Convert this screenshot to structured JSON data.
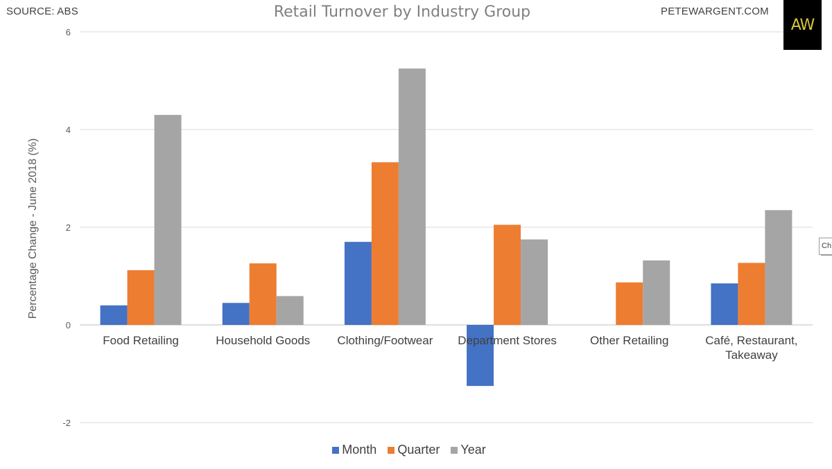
{
  "header": {
    "source": "SOURCE: ABS",
    "website": "PETEWARGENT.COM",
    "logo_text": "AW"
  },
  "edge_fragment": "Ch",
  "colors": {
    "month": "#4472c4",
    "quarter": "#ed7d31",
    "year": "#a5a5a5",
    "grid": "#d9d9d9",
    "logo_bg": "#000000",
    "logo_text": "#d8c638"
  },
  "chart_data": {
    "type": "bar",
    "title": "Retail Turnover by Industry Group",
    "xlabel": "",
    "ylabel": "Percentage Change - June 2018 (%)",
    "ylim": [
      -2,
      6
    ],
    "yticks": [
      -2,
      0,
      2,
      4,
      6
    ],
    "grid": true,
    "legend_position": "bottom",
    "categories": [
      [
        "Food Retailing"
      ],
      [
        "Household Goods"
      ],
      [
        "Clothing/Footwear"
      ],
      [
        "Department Stores"
      ],
      [
        "Other Retailing"
      ],
      [
        "Café, Restaurant,",
        "Takeaway"
      ]
    ],
    "series": [
      {
        "name": "Month",
        "values": [
          0.4,
          0.45,
          1.7,
          -1.25,
          0.0,
          0.85
        ]
      },
      {
        "name": "Quarter",
        "values": [
          1.12,
          1.26,
          3.33,
          2.05,
          0.87,
          1.27
        ]
      },
      {
        "name": "Year",
        "values": [
          4.3,
          0.59,
          5.25,
          1.75,
          1.32,
          2.35
        ]
      }
    ]
  }
}
